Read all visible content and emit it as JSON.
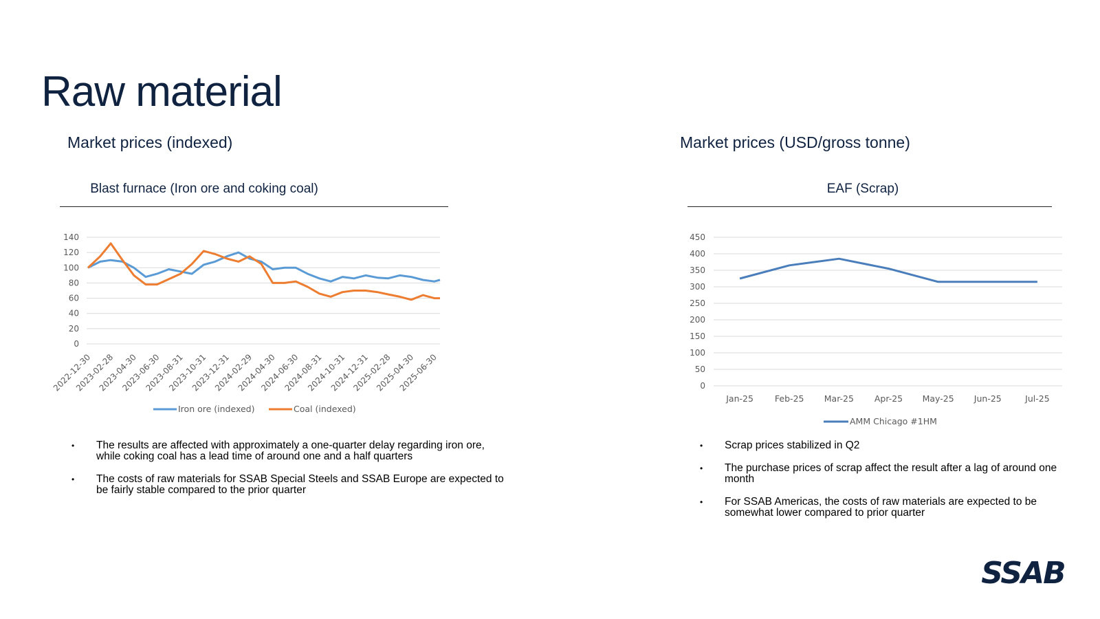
{
  "page": {
    "title": "Raw material",
    "left_heading": "Market prices (indexed)",
    "right_heading": "Market prices (USD/gross tonne)",
    "left_bullets": [
      "The results are affected with approximately a one-quarter delay regarding iron ore, while coking coal has a lead time of around one and a half quarters",
      "The costs of raw materials for SSAB Special Steels and SSAB Europe are expected to be fairly stable compared to the prior quarter"
    ],
    "right_bullets": [
      "Scrap prices stabilized in Q2",
      "The purchase prices of scrap affect the result after a lag of around one month",
      "For SSAB Americas, the costs of raw materials are expected to be somewhat lower compared to prior quarter"
    ],
    "logo_text": "SSAB",
    "colors": {
      "navy": "#0f2240",
      "iron_ore": "#5b9bd5",
      "coal": "#ed7d31",
      "scrap": "#4a7ebb",
      "logo": "#0f2240"
    }
  },
  "chart_data": [
    {
      "type": "line",
      "title": "Blast furnace (Iron ore and coking coal)",
      "xlabel": "",
      "ylabel": "",
      "ylim": [
        0,
        140
      ],
      "yticks": [
        0,
        20,
        40,
        60,
        80,
        100,
        120,
        140
      ],
      "x_tick_labels": [
        "2022-12-30",
        "2023-02-28",
        "2023-04-30",
        "2023-06-30",
        "2023-08-31",
        "2023-10-31",
        "2023-12-31",
        "2024-02-29",
        "2024-04-30",
        "2024-06-30",
        "2024-08-31",
        "2024-10-31",
        "2024-12-31",
        "2025-02-28",
        "2025-04-30",
        "2025-06-30"
      ],
      "x": [
        "2022-12-30",
        "2023-01-31",
        "2023-02-28",
        "2023-03-31",
        "2023-04-30",
        "2023-05-31",
        "2023-06-30",
        "2023-07-31",
        "2023-08-31",
        "2023-09-30",
        "2023-10-31",
        "2023-11-30",
        "2023-12-31",
        "2024-01-31",
        "2024-02-29",
        "2024-03-31",
        "2024-04-30",
        "2024-05-31",
        "2024-06-30",
        "2024-07-31",
        "2024-08-31",
        "2024-09-30",
        "2024-10-31",
        "2024-11-30",
        "2024-12-31",
        "2025-01-31",
        "2025-02-28",
        "2025-03-31",
        "2025-04-30",
        "2025-05-31",
        "2025-06-30",
        "2025-07-15"
      ],
      "grid": true,
      "legend": "bottom",
      "series": [
        {
          "name": "Iron ore (indexed)",
          "color": "#5b9bd5",
          "values": [
            100,
            108,
            110,
            108,
            100,
            88,
            92,
            98,
            95,
            92,
            104,
            108,
            115,
            120,
            112,
            108,
            98,
            100,
            100,
            92,
            86,
            82,
            88,
            86,
            90,
            87,
            86,
            90,
            88,
            84,
            82,
            84
          ]
        },
        {
          "name": "Coal (indexed)",
          "color": "#ed7d31",
          "values": [
            100,
            115,
            132,
            110,
            90,
            78,
            78,
            85,
            92,
            105,
            122,
            118,
            112,
            108,
            115,
            105,
            80,
            80,
            82,
            75,
            66,
            62,
            68,
            70,
            70,
            68,
            65,
            62,
            58,
            64,
            60,
            60
          ]
        }
      ]
    },
    {
      "type": "line",
      "title": "EAF (Scrap)",
      "xlabel": "",
      "ylabel": "",
      "ylim": [
        0,
        450
      ],
      "yticks": [
        0,
        50,
        100,
        150,
        200,
        250,
        300,
        350,
        400,
        450
      ],
      "categories": [
        "Jan-25",
        "Feb-25",
        "Mar-25",
        "Apr-25",
        "May-25",
        "Jun-25",
        "Jul-25"
      ],
      "grid": true,
      "legend": "bottom",
      "series": [
        {
          "name": "AMM Chicago #1HM",
          "color": "#4a7ebb",
          "values": [
            325,
            365,
            385,
            355,
            315,
            315,
            315
          ]
        }
      ]
    }
  ]
}
